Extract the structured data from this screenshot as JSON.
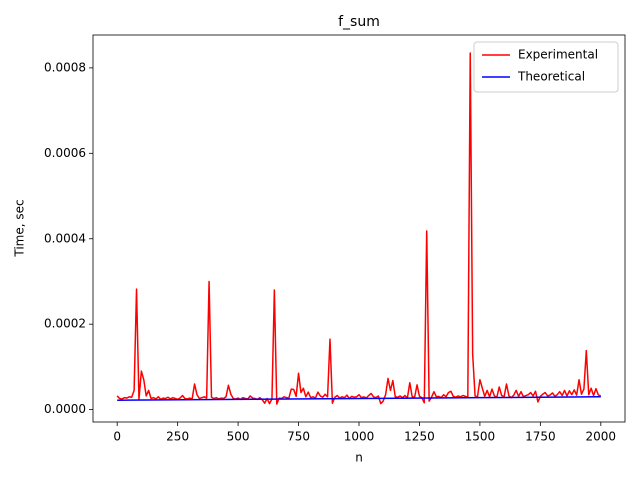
{
  "chart_data": {
    "type": "line",
    "title": "f_sum",
    "x_label": "n",
    "y_label": "Time, sec",
    "xlim": [
      -100,
      2100
    ],
    "xticks": [
      0,
      250,
      500,
      750,
      1000,
      1250,
      1500,
      1750,
      2000
    ],
    "ylim": [
      -2.9e-05,
      0.000877
    ],
    "yticks": [
      {
        "value": 0,
        "label": "0.0000"
      },
      {
        "value": 0.0002,
        "label": "0.0002"
      },
      {
        "value": 0.0004,
        "label": "0.0004"
      },
      {
        "value": 0.0006,
        "label": "0.0006"
      },
      {
        "value": 0.0008,
        "label": "0.0008"
      }
    ],
    "legend": "upper right",
    "series": [
      {
        "name": "Experimental",
        "color": "#ff0000",
        "x": [
          0,
          10,
          20,
          30,
          40,
          50,
          60,
          70,
          80,
          90,
          100,
          110,
          120,
          130,
          140,
          150,
          160,
          170,
          180,
          190,
          200,
          210,
          220,
          230,
          240,
          250,
          260,
          270,
          280,
          290,
          300,
          310,
          320,
          330,
          340,
          350,
          360,
          370,
          380,
          390,
          400,
          410,
          420,
          430,
          440,
          450,
          460,
          470,
          480,
          490,
          500,
          510,
          520,
          530,
          540,
          550,
          560,
          570,
          580,
          590,
          600,
          610,
          620,
          630,
          640,
          650,
          660,
          670,
          680,
          690,
          700,
          710,
          720,
          730,
          740,
          750,
          760,
          770,
          780,
          790,
          800,
          810,
          820,
          830,
          840,
          850,
          860,
          870,
          880,
          890,
          900,
          910,
          920,
          930,
          940,
          950,
          960,
          970,
          980,
          990,
          1000,
          1010,
          1020,
          1030,
          1040,
          1050,
          1060,
          1070,
          1080,
          1090,
          1100,
          1110,
          1120,
          1130,
          1140,
          1150,
          1160,
          1170,
          1180,
          1190,
          1200,
          1210,
          1220,
          1230,
          1240,
          1250,
          1260,
          1270,
          1280,
          1290,
          1300,
          1310,
          1320,
          1330,
          1340,
          1350,
          1360,
          1370,
          1380,
          1390,
          1400,
          1410,
          1420,
          1430,
          1440,
          1450,
          1460,
          1470,
          1480,
          1490,
          1500,
          1510,
          1520,
          1530,
          1540,
          1550,
          1560,
          1570,
          1580,
          1590,
          1600,
          1610,
          1620,
          1630,
          1640,
          1650,
          1660,
          1670,
          1680,
          1690,
          1700,
          1710,
          1720,
          1730,
          1740,
          1750,
          1760,
          1770,
          1780,
          1790,
          1800,
          1810,
          1820,
          1830,
          1840,
          1850,
          1860,
          1870,
          1880,
          1890,
          1900,
          1910,
          1920,
          1930,
          1940,
          1950,
          1960,
          1970,
          1980,
          1990,
          2000
        ],
        "values": [
          3.2e-05,
          2.6e-05,
          2.5e-05,
          2.8e-05,
          2.7e-05,
          3e-05,
          2.9e-05,
          4.5e-05,
          0.000282,
          2.4e-05,
          9e-05,
          7e-05,
          3.2e-05,
          4.5e-05,
          2.6e-05,
          2.8e-05,
          2.5e-05,
          3e-05,
          2.4e-05,
          2.7e-05,
          2.6e-05,
          2.9e-05,
          2.5e-05,
          2.8e-05,
          2.6e-05,
          2.4e-05,
          2.7e-05,
          3.3e-05,
          2.6e-05,
          2.5e-05,
          2.7e-05,
          2.5e-05,
          6e-05,
          3.5e-05,
          2.6e-05,
          2.8e-05,
          3e-05,
          2.7e-05,
          0.0003,
          2.9e-05,
          2.6e-05,
          2.8e-05,
          2.5e-05,
          2.7e-05,
          2.6e-05,
          3e-05,
          5.7e-05,
          3.6e-05,
          2.6e-05,
          2.5e-05,
          2.7e-05,
          2.4e-05,
          2.8e-05,
          2.6e-05,
          2.5e-05,
          3.2e-05,
          2.7e-05,
          2.6e-05,
          2.4e-05,
          2.8e-05,
          2.3e-05,
          1.5e-05,
          2.6e-05,
          1.4e-05,
          2.5e-05,
          0.00028,
          1.3e-05,
          2.7e-05,
          2.6e-05,
          3e-05,
          2.8e-05,
          2.7e-05,
          4.8e-05,
          4.7e-05,
          3.1e-05,
          8.5e-05,
          4e-05,
          5e-05,
          3e-05,
          4.1e-05,
          2.8e-05,
          3e-05,
          2.7e-05,
          4.1e-05,
          3.2e-05,
          2.9e-05,
          3.6e-05,
          3e-05,
          0.000165,
          1.5e-05,
          2.9e-05,
          3.3e-05,
          2.7e-05,
          3e-05,
          2.8e-05,
          3.4e-05,
          2.6e-05,
          3.1e-05,
          2.9e-05,
          3e-05,
          3.5e-05,
          2.8e-05,
          3e-05,
          2.7e-05,
          3.3e-05,
          3.8e-05,
          3e-05,
          2.8e-05,
          3.2e-05,
          1.4e-05,
          2e-05,
          3.5e-05,
          7.3e-05,
          4.5e-05,
          6.8e-05,
          3e-05,
          2.9e-05,
          3.2e-05,
          2.8e-05,
          3.3e-05,
          2.7e-05,
          6.3e-05,
          3e-05,
          2.9e-05,
          5.8e-05,
          3.1e-05,
          2.8e-05,
          1.6e-05,
          0.000418,
          2e-05,
          2.9e-05,
          4.2e-05,
          3e-05,
          3.1e-05,
          2.8e-05,
          3.5e-05,
          3e-05,
          4e-05,
          4.3e-05,
          3.1e-05,
          2.9e-05,
          3.2e-05,
          3e-05,
          3.3e-05,
          3.1e-05,
          2.9e-05,
          0.000835,
          0.00013,
          3.2e-05,
          3e-05,
          7e-05,
          5e-05,
          3.1e-05,
          4.5e-05,
          3e-05,
          4.8e-05,
          3.2e-05,
          2.9e-05,
          5.3e-05,
          3.3e-05,
          3e-05,
          6e-05,
          3.2e-05,
          2.8e-05,
          3.4e-05,
          4.5e-05,
          3.1e-05,
          4.2e-05,
          3e-05,
          3.3e-05,
          3.5e-05,
          4e-05,
          3.2e-05,
          4.3e-05,
          1.8e-05,
          3.1e-05,
          3.6e-05,
          4e-05,
          3.2e-05,
          3.4e-05,
          3.9e-05,
          3.1e-05,
          3.5e-05,
          4.2e-05,
          3.3e-05,
          4.5e-05,
          3.2e-05,
          4.4e-05,
          3.5e-05,
          4.6e-05,
          3.4e-05,
          7e-05,
          3.6e-05,
          4.8e-05,
          0.000138,
          3.5e-05,
          5e-05,
          3.3e-05,
          4.9e-05,
          3.4e-05,
          3.2e-05
        ]
      },
      {
        "name": "Theoretical",
        "color": "#0000ff",
        "x": [
          0,
          500,
          1000,
          1500,
          2000
        ],
        "values": [
          2.2e-05,
          2.4e-05,
          2.6e-05,
          2.8e-05,
          3e-05
        ]
      }
    ]
  }
}
